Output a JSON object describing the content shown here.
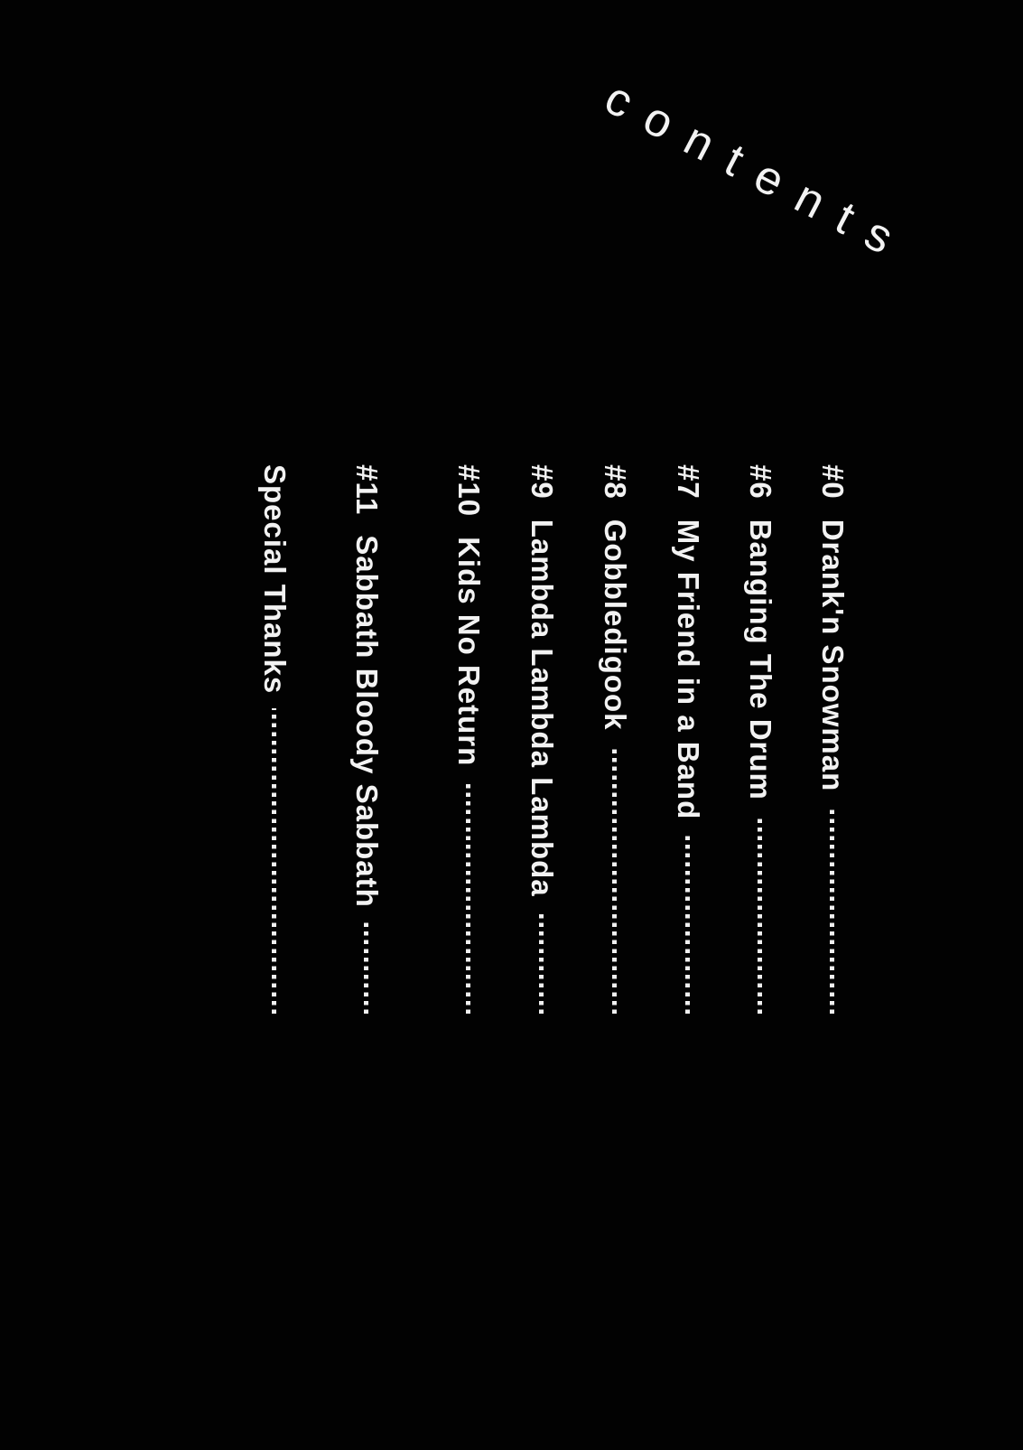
{
  "page": {
    "background_color": "#020202",
    "text_color": "#f2f2f2"
  },
  "heading": {
    "text": "contents"
  },
  "toc": {
    "entries": [
      {
        "num": "#0",
        "title": "Drank'n Snowman"
      },
      {
        "num": "#6",
        "title": "Banging The Drum"
      },
      {
        "num": "#7",
        "title": "My Friend in a Band"
      },
      {
        "num": "#8",
        "title": "Gobbledigook"
      },
      {
        "num": "#9",
        "title": "Lambda Lambda Lambda"
      },
      {
        "num": "#10",
        "title": "Kids No Return"
      },
      {
        "num": "#11",
        "title": "Sabbath Bloody Sabbath"
      },
      {
        "num": "",
        "title": "Special Thanks"
      }
    ]
  }
}
